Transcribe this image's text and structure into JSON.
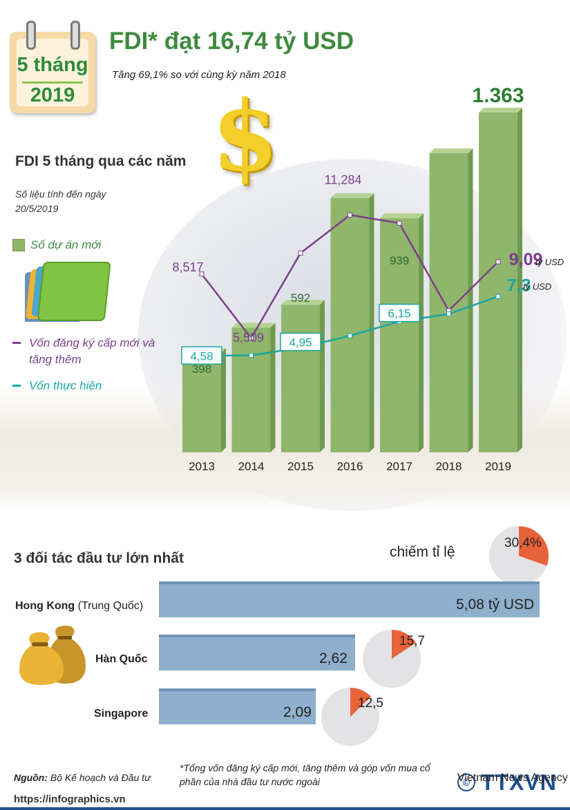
{
  "calendar": {
    "month": "5 tháng",
    "year": "2019"
  },
  "header": {
    "title": "FDI* đạt 16,74 tỷ USD",
    "subtitle": "Tăng 69,1% so với cùng kỳ năm 2018",
    "dollar_glyph": "$"
  },
  "chart_section": {
    "title": "FDI 5 tháng qua các năm",
    "note": "Số liệu tính đến ngày 20/5/2019",
    "legend_new_projects": "Số dự án mới",
    "legend_registered": "Vốn đăng ký cấp mới và tăng thêm",
    "legend_realized": "Vốn thực hiện"
  },
  "chart_data": {
    "type": "bar",
    "categories": [
      "2013",
      "2014",
      "2015",
      "2016",
      "2017",
      "2018",
      "2019"
    ],
    "series": [
      {
        "name": "Số dự án mới",
        "type": "bar",
        "values": [
          398,
          500,
          592,
          1020,
          939,
          1200,
          1363
        ],
        "labels": [
          "398",
          "",
          "592",
          "",
          "939",
          "",
          "1.363"
        ]
      },
      {
        "name": "Vốn đăng ký cấp mới và tăng thêm",
        "type": "line",
        "values": [
          8.517,
          5.509,
          9.5,
          11.284,
          10.9,
          6.8,
          9.09
        ],
        "labels": [
          "8,517",
          "5,509",
          "",
          "11,284",
          "",
          "",
          "9,09"
        ],
        "unit": "tỷ USD"
      },
      {
        "name": "Vốn thực hiện",
        "type": "line",
        "values": [
          4.58,
          4.6,
          4.95,
          5.5,
          6.15,
          6.5,
          7.3
        ],
        "labels": [
          "4,58",
          "",
          "4,95",
          "",
          "6,15",
          "",
          "7,3"
        ],
        "unit": "tỷ USD"
      }
    ],
    "colors": {
      "bar": "#8fb66b",
      "registered": "#7b3f8c",
      "realized": "#19a7a0"
    }
  },
  "partners": {
    "title": "3 đối tác đầu tư lớn nhất",
    "share_label": "chiếm tỉ lệ",
    "items": [
      {
        "name": "Hong Kong",
        "name_suffix": " (Trung Quốc)",
        "value": 5.08,
        "value_label": "5,08 tỷ USD",
        "share": 30.4,
        "share_label": "30,4%"
      },
      {
        "name": "Hàn Quốc",
        "name_suffix": "",
        "value": 2.62,
        "value_label": "2,62",
        "share": 15.7,
        "share_label": "15,7"
      },
      {
        "name": "Singapore",
        "name_suffix": "",
        "value": 2.09,
        "value_label": "2,09",
        "share": 12.5,
        "share_label": "12,5"
      }
    ]
  },
  "footer": {
    "source_label": "Nguồn:",
    "source": " Bộ Kế hoạch và Đầu tư",
    "footnote": "*Tổng vốn đăng ký cấp mới, tăng thêm và góp vốn mua cổ phần của nhà đầu tư nước ngoài",
    "logo": "TTXVN",
    "logo_sub": "Vietnam News Agency",
    "copyright_glyph": "©",
    "url": "https://infographics.vn"
  }
}
